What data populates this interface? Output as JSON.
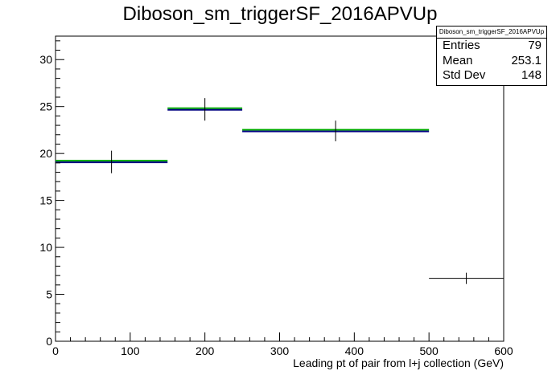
{
  "title": "Diboson_sm_triggerSF_2016APVUp",
  "stats": {
    "name": "Diboson_sm_triggerSF_2016APVUp",
    "rows": [
      {
        "label": "Entries",
        "value": "79"
      },
      {
        "label": "Mean",
        "value": "253.1"
      },
      {
        "label": "Std Dev",
        "value": "148"
      }
    ]
  },
  "colors": {
    "syst_band": "#00aa00",
    "nominal": "#000080",
    "data": "#000000"
  },
  "chart_data": {
    "type": "histogram",
    "title": "Diboson_sm_triggerSF_2016APVUp",
    "xlabel": "Leading pt of pair from l+j collection (GeV)",
    "ylabel": "",
    "xlim": [
      0,
      600
    ],
    "ylim": [
      0,
      32.5
    ],
    "xticks": [
      0,
      100,
      200,
      300,
      400,
      500,
      600
    ],
    "yticks": [
      0,
      5,
      10,
      15,
      20,
      25,
      30
    ],
    "bins": [
      {
        "xlow": 0,
        "xhigh": 150,
        "value": 19.1,
        "err": 1.2
      },
      {
        "xlow": 150,
        "xhigh": 250,
        "value": 24.7,
        "err": 1.2
      },
      {
        "xlow": 250,
        "xhigh": 500,
        "value": 22.4,
        "err": 1.1
      },
      {
        "xlow": 500,
        "xhigh": 600,
        "value": 6.7,
        "err": 0.6
      }
    ],
    "grid": false,
    "legend": "stats box top-right"
  }
}
